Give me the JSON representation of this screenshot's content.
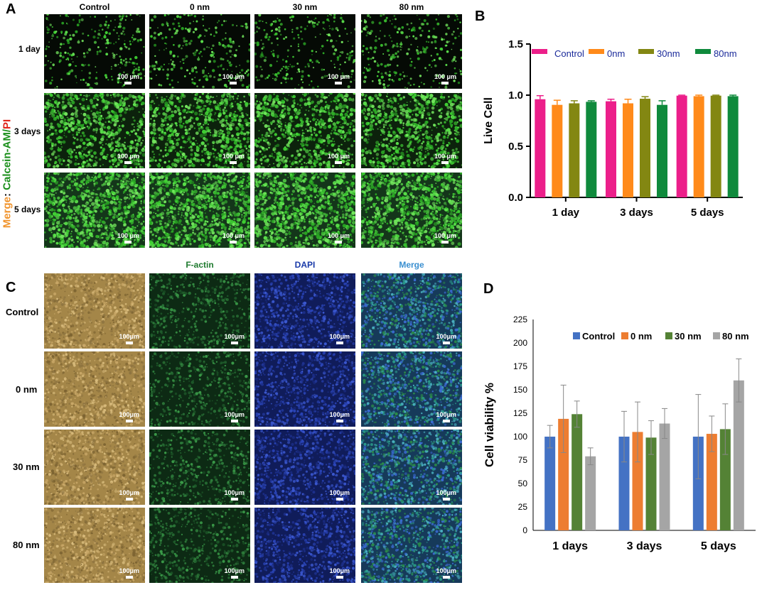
{
  "panels": {
    "a": "A",
    "b": "B",
    "c": "C",
    "d": "D"
  },
  "panel_a": {
    "columns": [
      "Control",
      "0 nm",
      "30 nm",
      "80 nm"
    ],
    "rows": [
      "1 day",
      "3 days",
      "5 days"
    ],
    "scale_bar": "100 μm",
    "side_label": {
      "merge": "Merge",
      "sep": ": ",
      "calcein": "Calcein-AM",
      "slash": "/",
      "pi": "PI"
    },
    "colors": {
      "merge": "#f0932b",
      "calcein": "#1a8f1a",
      "pi": "#e0251b",
      "live": "#4bcf3b"
    }
  },
  "panel_c": {
    "columns": [
      "",
      "F-actin",
      "DAPI",
      "Merge"
    ],
    "column_colors": [
      "#000000",
      "#1e7a2e",
      "#1a3aa8",
      "#3a8fd0"
    ],
    "rows": [
      "Control",
      "0 nm",
      "30 nm",
      "80 nm"
    ],
    "scale_bar": "100μm"
  },
  "chart_data": [
    {
      "type": "bar",
      "panel": "B",
      "categories": [
        "1 day",
        "3 days",
        "5 days"
      ],
      "series": [
        {
          "name": "Control",
          "values": [
            0.96,
            0.94,
            0.995
          ],
          "errors": [
            0.035,
            0.02,
            0.005
          ],
          "color": "#ec1f8a"
        },
        {
          "name": "0nm",
          "values": [
            0.905,
            0.92,
            0.99
          ],
          "errors": [
            0.045,
            0.04,
            0.01
          ],
          "color": "#ff8a1a"
        },
        {
          "name": "30nm",
          "values": [
            0.92,
            0.965,
            0.995
          ],
          "errors": [
            0.025,
            0.02,
            0.005
          ],
          "color": "#838712"
        },
        {
          "name": "80nm",
          "values": [
            0.935,
            0.905,
            0.99
          ],
          "errors": [
            0.01,
            0.04,
            0.01
          ],
          "color": "#0f8a3c"
        }
      ],
      "ylabel": "Live Cell",
      "ylim": [
        0,
        1.5
      ],
      "yticks": [
        "0.0",
        "0.5",
        "1.0",
        "1.5"
      ],
      "legend_position": "top",
      "legend_text_color": "#1a2a9a"
    },
    {
      "type": "bar",
      "panel": "D",
      "categories": [
        "1 days",
        "3 days",
        "5 days"
      ],
      "series": [
        {
          "name": "Control",
          "values": [
            100,
            100,
            100
          ],
          "errors": [
            12,
            27,
            45
          ],
          "color": "#4472c4"
        },
        {
          "name": "0 nm",
          "values": [
            119,
            105,
            103
          ],
          "errors": [
            36,
            32,
            19
          ],
          "color": "#ed7d31"
        },
        {
          "name": "30 nm",
          "values": [
            124,
            99,
            108
          ],
          "errors": [
            14,
            18,
            27
          ],
          "color": "#548235"
        },
        {
          "name": "80 nm",
          "values": [
            79,
            114,
            160
          ],
          "errors": [
            9,
            16,
            23
          ],
          "color": "#a5a5a5"
        }
      ],
      "ylabel": "Cell viability %",
      "ylim": [
        0,
        225
      ],
      "yticks": [
        "0",
        "25",
        "50",
        "75",
        "100",
        "125",
        "150",
        "175",
        "200",
        "225"
      ],
      "legend_position": "top"
    }
  ]
}
